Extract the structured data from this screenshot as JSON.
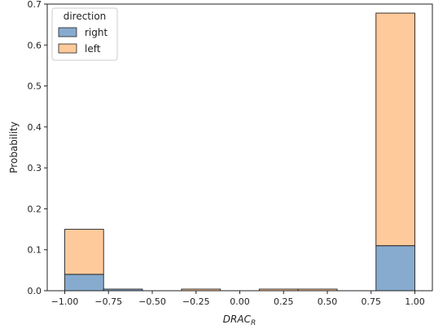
{
  "chart_data": {
    "type": "bar",
    "xlabel": "DRAC",
    "xlabel_subscript": "R",
    "ylabel": "Probability",
    "xlim": [
      -1.1,
      1.1
    ],
    "ylim": [
      0,
      0.7
    ],
    "xticks": [
      -1.0,
      -0.75,
      -0.5,
      -0.25,
      0.0,
      0.25,
      0.5,
      0.75,
      1.0
    ],
    "xtick_labels": [
      "−1.00",
      "−0.75",
      "−0.50",
      "−0.25",
      "0.00",
      "0.25",
      "0.50",
      "0.75",
      "1.00"
    ],
    "yticks": [
      0.0,
      0.1,
      0.2,
      0.3,
      0.4,
      0.5,
      0.6,
      0.7
    ],
    "ytick_labels": [
      "0.0",
      "0.1",
      "0.2",
      "0.3",
      "0.4",
      "0.5",
      "0.6",
      "0.7"
    ],
    "bin_edges": [
      -1.0,
      -0.778,
      -0.556,
      -0.333,
      -0.111,
      0.111,
      0.333,
      0.556,
      0.778,
      1.0
    ],
    "stacked": true,
    "grid": false,
    "legend": {
      "title": "direction",
      "placement": "top-left"
    },
    "series": [
      {
        "name": "right",
        "color": "#5f8fbd",
        "values": [
          0.04,
          0.004,
          0.0,
          0.0,
          0.0,
          0.0,
          0.0,
          0.0,
          0.11
        ]
      },
      {
        "name": "left",
        "color": "#ffb87a",
        "values": [
          0.11,
          0.0,
          0.0,
          0.004,
          0.0,
          0.004,
          0.004,
          0.0,
          0.568
        ]
      }
    ]
  }
}
